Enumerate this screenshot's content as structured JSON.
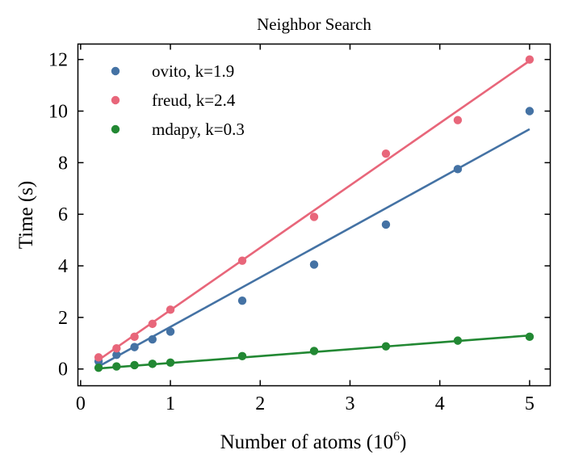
{
  "chart_data": {
    "type": "scatter",
    "title": "Neighbor Search",
    "xlabel": "Number of atoms (10",
    "xlabel_superscript": "6",
    "xlabel_suffix": ")",
    "ylabel": "Time (s)",
    "xlim": [
      -0.03,
      5.23
    ],
    "ylim": [
      -0.65,
      12.6
    ],
    "xticks": [
      0,
      1,
      2,
      3,
      4,
      5
    ],
    "yticks": [
      0,
      2,
      4,
      6,
      8,
      10,
      12
    ],
    "grid": false,
    "legend_position": "top-left",
    "x": [
      0.2,
      0.4,
      0.6,
      0.8,
      1.0,
      1.8,
      2.6,
      3.4,
      4.2,
      5.0
    ],
    "series": [
      {
        "name": "ovito, k=1.9",
        "color": "#4472a4",
        "values": [
          0.3,
          0.55,
          0.85,
          1.15,
          1.45,
          2.65,
          4.05,
          5.6,
          7.75,
          10.0
        ],
        "fit_line": [
          [
            0.2,
            0.1
          ],
          [
            5.0,
            9.3
          ]
        ]
      },
      {
        "name": "freud, k=2.4",
        "color": "#e8667a",
        "values": [
          0.45,
          0.8,
          1.25,
          1.75,
          2.3,
          4.2,
          5.9,
          8.35,
          9.65,
          12.0
        ],
        "fit_line": [
          [
            0.2,
            0.35
          ],
          [
            5.0,
            11.95
          ]
        ]
      },
      {
        "name": "mdapy, k=0.3",
        "color": "#228833",
        "values": [
          0.05,
          0.1,
          0.15,
          0.2,
          0.25,
          0.5,
          0.7,
          0.88,
          1.1,
          1.25
        ],
        "fit_line": [
          [
            0.2,
            0.02
          ],
          [
            5.0,
            1.3
          ]
        ]
      }
    ]
  }
}
